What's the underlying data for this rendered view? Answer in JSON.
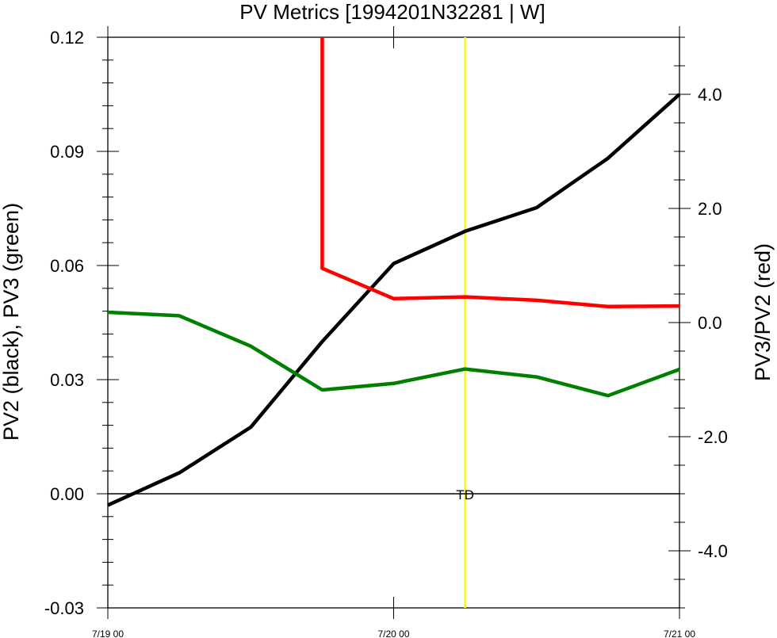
{
  "chart_data": {
    "type": "line",
    "title": "PV Metrics [1994201N32281 | W]",
    "ylabel": "PV2 (black), PV3 (green)",
    "y2label": "PV3/PV2 (red)",
    "x_tick_labels": [
      "7/19 00",
      "7/20 00",
      "7/21 00"
    ],
    "x_ticks_hours": [
      0,
      24,
      48
    ],
    "xlim": [
      0,
      48
    ],
    "ylim": [
      -0.03,
      0.12
    ],
    "y_tick_labels": [
      "-0.03",
      "0.00",
      "0.03",
      "0.06",
      "0.09",
      "0.12"
    ],
    "y_ticks": [
      -0.03,
      0.0,
      0.03,
      0.06,
      0.09,
      0.12
    ],
    "y2lim": [
      -5.0,
      5.0
    ],
    "y2_tick_labels": [
      "-4.0",
      "-2.0",
      "0.0",
      "2.0",
      "4.0"
    ],
    "y2_ticks": [
      -4.0,
      -2.0,
      0.0,
      2.0,
      4.0
    ],
    "x": [
      0,
      6,
      12,
      18,
      24,
      30,
      36,
      42,
      48
    ],
    "series": [
      {
        "color": "#000000",
        "axis": "left",
        "values": [
          -0.003,
          0.0055,
          0.0175,
          0.04,
          0.0605,
          0.069,
          0.0752,
          0.0882,
          0.105
        ]
      },
      {
        "color": "#008000",
        "axis": "left",
        "values": [
          0.0477,
          0.0468,
          0.0388,
          0.0273,
          0.029,
          0.0328,
          0.0307,
          0.0258,
          0.0327
        ]
      },
      {
        "color": "#ff0000",
        "axis": "right",
        "values": [
          null,
          null,
          null,
          0.95,
          0.42,
          0.45,
          0.39,
          0.28,
          0.29
        ],
        "offscale_top_x": 18
      }
    ],
    "reference_lines": [
      {
        "axis": "x",
        "value": 30,
        "color": "#ffff00",
        "label": "TD"
      },
      {
        "axis": "y",
        "value": 0.0,
        "color": "#000000"
      }
    ],
    "grid": false,
    "legend": "none"
  }
}
